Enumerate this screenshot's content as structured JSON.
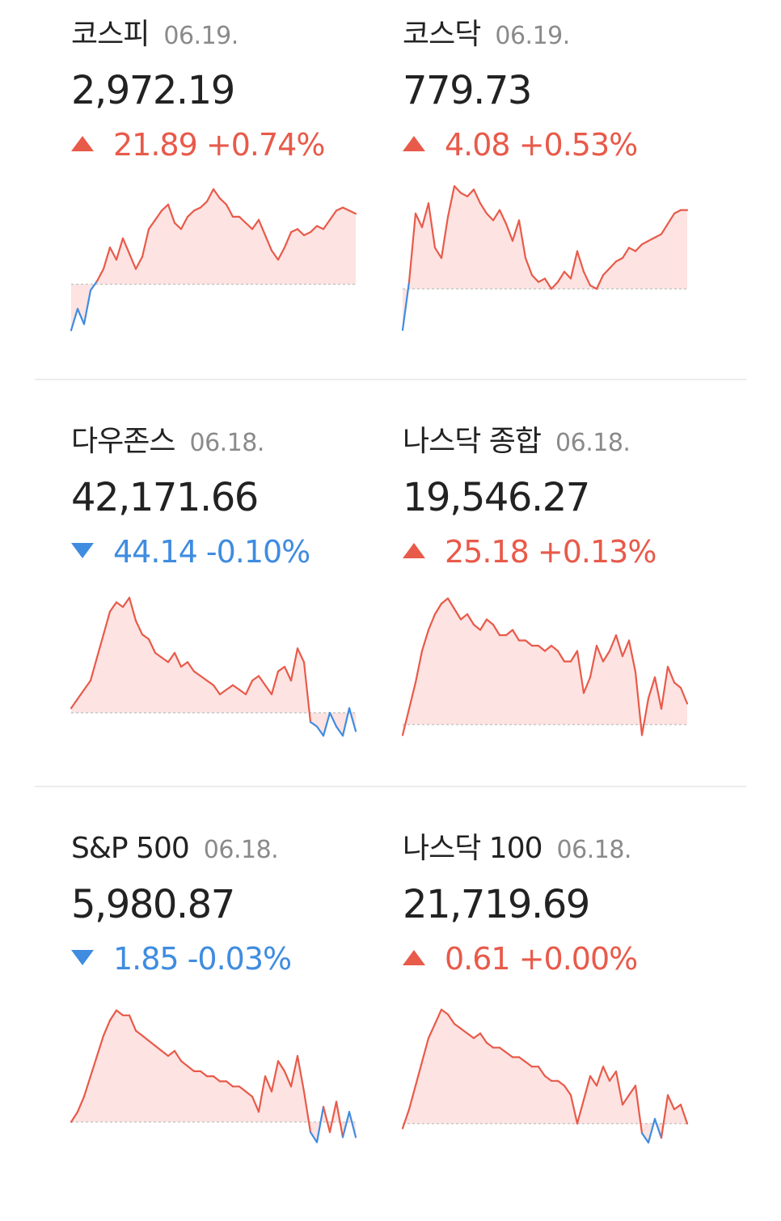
{
  "colors": {
    "up": "#e85a4a",
    "down": "#3f8ce0",
    "fill": "#fde3e1",
    "baseline": "#c8c8c8"
  },
  "indices": [
    {
      "name": "코스피",
      "date": "06.19.",
      "price": "2,972.19",
      "direction": "up",
      "change": "21.89 +0.74%",
      "chart": {
        "min": -0.16,
        "max": 0.32,
        "values": [
          -0.15,
          -0.08,
          -0.13,
          -0.02,
          0.01,
          0.05,
          0.12,
          0.08,
          0.15,
          0.1,
          0.05,
          0.09,
          0.18,
          0.21,
          0.24,
          0.26,
          0.2,
          0.18,
          0.22,
          0.24,
          0.25,
          0.27,
          0.31,
          0.28,
          0.26,
          0.22,
          0.22,
          0.2,
          0.18,
          0.21,
          0.16,
          0.11,
          0.08,
          0.12,
          0.17,
          0.18,
          0.16,
          0.17,
          0.19,
          0.18,
          0.21,
          0.24,
          0.25,
          0.24,
          0.23
        ]
      }
    },
    {
      "name": "코스닥",
      "date": "06.19.",
      "price": "779.73",
      "direction": "up",
      "change": "4.08 +0.53%",
      "chart": {
        "min": -0.13,
        "max": 0.3,
        "values": [
          -0.12,
          0.02,
          0.22,
          0.18,
          0.25,
          0.12,
          0.09,
          0.21,
          0.3,
          0.28,
          0.27,
          0.29,
          0.25,
          0.22,
          0.2,
          0.23,
          0.19,
          0.14,
          0.2,
          0.09,
          0.04,
          0.02,
          0.03,
          0.0,
          0.02,
          0.05,
          0.03,
          0.11,
          0.05,
          0.01,
          0.0,
          0.04,
          0.06,
          0.08,
          0.09,
          0.12,
          0.11,
          0.13,
          0.14,
          0.15,
          0.16,
          0.19,
          0.22,
          0.23,
          0.23
        ]
      }
    },
    {
      "name": "다우존스",
      "date": "06.18.",
      "price": "42,171.66",
      "direction": "down",
      "change": "44.14 -0.10%",
      "chart": {
        "min": -0.06,
        "max": 0.26,
        "values": [
          0.01,
          0.03,
          0.05,
          0.07,
          0.12,
          0.17,
          0.22,
          0.24,
          0.23,
          0.25,
          0.2,
          0.17,
          0.16,
          0.13,
          0.12,
          0.11,
          0.13,
          0.1,
          0.11,
          0.09,
          0.08,
          0.07,
          0.06,
          0.04,
          0.05,
          0.06,
          0.05,
          0.04,
          0.07,
          0.08,
          0.06,
          0.04,
          0.09,
          0.1,
          0.07,
          0.14,
          0.11,
          -0.02,
          -0.03,
          -0.05,
          0.0,
          -0.03,
          -0.05,
          0.01,
          -0.04
        ]
      }
    },
    {
      "name": "나스닥 종합",
      "date": "06.18.",
      "price": "19,546.27",
      "direction": "up",
      "change": "25.18 +0.13%",
      "chart": {
        "min": -0.03,
        "max": 0.25,
        "values": [
          -0.02,
          0.03,
          0.08,
          0.14,
          0.18,
          0.21,
          0.23,
          0.24,
          0.22,
          0.2,
          0.21,
          0.19,
          0.18,
          0.2,
          0.19,
          0.17,
          0.17,
          0.18,
          0.16,
          0.16,
          0.15,
          0.15,
          0.14,
          0.15,
          0.14,
          0.12,
          0.12,
          0.14,
          0.06,
          0.09,
          0.15,
          0.12,
          0.14,
          0.17,
          0.13,
          0.16,
          0.1,
          -0.02,
          0.05,
          0.09,
          0.03,
          0.11,
          0.08,
          0.07,
          0.04
        ]
      }
    },
    {
      "name": "S&P 500",
      "date": "06.18.",
      "price": "5,980.87",
      "direction": "down",
      "change": "1.85 -0.03%",
      "chart": {
        "min": -0.05,
        "max": 0.24,
        "values": [
          0.0,
          0.02,
          0.05,
          0.09,
          0.13,
          0.17,
          0.2,
          0.22,
          0.21,
          0.21,
          0.18,
          0.17,
          0.16,
          0.15,
          0.14,
          0.13,
          0.14,
          0.12,
          0.11,
          0.1,
          0.1,
          0.09,
          0.09,
          0.08,
          0.08,
          0.07,
          0.07,
          0.06,
          0.05,
          0.02,
          0.09,
          0.06,
          0.12,
          0.1,
          0.07,
          0.13,
          0.06,
          -0.02,
          -0.04,
          0.03,
          -0.02,
          0.04,
          -0.03,
          0.02,
          -0.03
        ]
      }
    },
    {
      "name": "나스닥 100",
      "date": "06.18.",
      "price": "21,719.69",
      "direction": "up",
      "change": "0.61 +0.00%",
      "chart": {
        "min": -0.05,
        "max": 0.26,
        "values": [
          -0.01,
          0.03,
          0.08,
          0.13,
          0.18,
          0.21,
          0.24,
          0.23,
          0.21,
          0.2,
          0.19,
          0.18,
          0.19,
          0.17,
          0.16,
          0.16,
          0.15,
          0.14,
          0.14,
          0.13,
          0.12,
          0.12,
          0.1,
          0.09,
          0.09,
          0.08,
          0.06,
          0.0,
          0.05,
          0.1,
          0.08,
          0.12,
          0.09,
          0.11,
          0.04,
          0.06,
          0.08,
          -0.02,
          -0.04,
          0.01,
          -0.03,
          0.06,
          0.03,
          0.04,
          0.0
        ]
      }
    }
  ]
}
